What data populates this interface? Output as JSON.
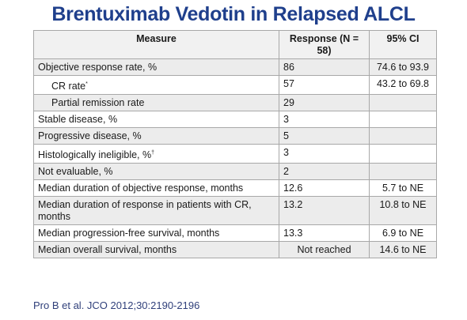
{
  "title": "Brentuximab Vedotin in Relapsed ALCL",
  "table": {
    "headers": [
      "Measure",
      "Response (N = 58)",
      "95% CI"
    ],
    "rows": [
      {
        "measure": "Objective response rate, %",
        "sup": "",
        "response": "86",
        "ci": "74.6 to 93.9"
      },
      {
        "measure": "CR rate",
        "sup": "*",
        "response": "57",
        "ci": "43.2 to 69.8"
      },
      {
        "measure": "Partial remission rate",
        "sup": "",
        "response": "29",
        "ci": ""
      },
      {
        "measure": "Stable disease, %",
        "sup": "",
        "response": "3",
        "ci": ""
      },
      {
        "measure": "Progressive disease, %",
        "sup": "",
        "response": "5",
        "ci": ""
      },
      {
        "measure": "Histologically ineligible, %",
        "sup": "†",
        "response": "3",
        "ci": ""
      },
      {
        "measure": "Not evaluable, %",
        "sup": "",
        "response": "2",
        "ci": ""
      },
      {
        "measure": "Median duration of objective response, months",
        "sup": "",
        "response": "12.6",
        "ci": "5.7 to NE"
      },
      {
        "measure": "Median duration of response in patients with CR, months",
        "sup": "",
        "response": "13.2",
        "ci": "10.8 to NE"
      },
      {
        "measure": "Median progression-free survival, months",
        "sup": "",
        "response": "13.3",
        "ci": "6.9 to NE"
      },
      {
        "measure": "Median overall survival, months",
        "sup": "",
        "response": "Not reached",
        "ci": "14.6 to NE"
      }
    ]
  },
  "citation": "Pro B et al. JCO 2012;30:2190-2196"
}
